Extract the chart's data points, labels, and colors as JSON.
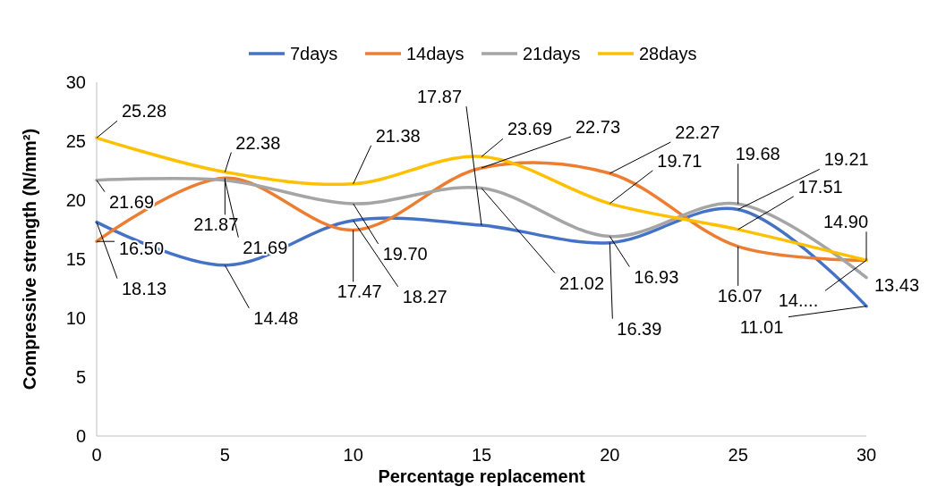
{
  "chart_data": {
    "type": "line",
    "xlabel": "Percentage replacement",
    "ylabel": "Compressive strength (N/mm²)",
    "x": [
      0,
      5,
      10,
      15,
      20,
      25,
      30
    ],
    "xlim": [
      0,
      30
    ],
    "xticks": [
      0,
      5,
      10,
      15,
      20,
      25,
      30
    ],
    "ylim": [
      0,
      30
    ],
    "yticks": [
      0,
      5,
      10,
      15,
      20,
      25,
      30
    ],
    "grid": false,
    "legend": "top",
    "marker": "none",
    "line_style": "solid",
    "series": [
      {
        "name": "7days",
        "color": "#4472c4",
        "values": [
          18.13,
          14.48,
          18.27,
          17.87,
          16.39,
          19.21,
          11.01
        ],
        "value_labels": [
          "18.13",
          "14.48",
          "18.27",
          "17.87",
          "16.39",
          "19.21",
          "11.01"
        ]
      },
      {
        "name": "14days",
        "color": "#ed7d31",
        "values": [
          16.5,
          21.87,
          17.47,
          22.73,
          22.27,
          16.07,
          14.9
        ],
        "value_labels": [
          "16.50",
          "21.87",
          "17.47",
          "22.73",
          "22.27",
          "16.07",
          "14...."
        ]
      },
      {
        "name": "21days",
        "color": "#a5a5a5",
        "values": [
          21.69,
          21.69,
          19.7,
          21.02,
          16.93,
          19.68,
          13.43
        ],
        "value_labels": [
          "21.69",
          "21.69",
          "19.70",
          "21.02",
          "16.93",
          "19.68",
          "13.43"
        ]
      },
      {
        "name": "28days",
        "color": "#ffc000",
        "values": [
          25.28,
          22.38,
          21.38,
          23.69,
          19.71,
          17.51,
          14.9
        ],
        "value_labels": [
          "25.28",
          "22.38",
          "21.38",
          "23.69",
          "19.71",
          "17.51",
          "14.90"
        ]
      }
    ]
  }
}
